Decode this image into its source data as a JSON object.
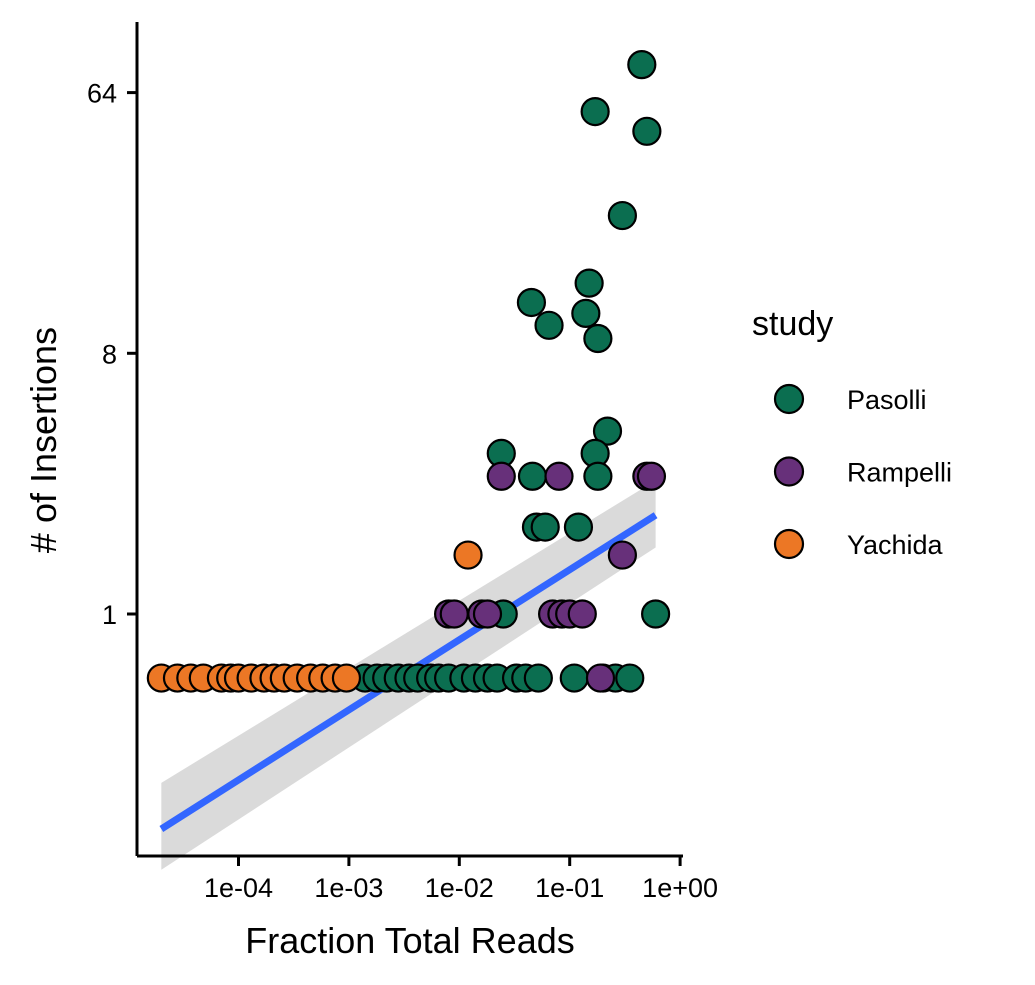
{
  "chart_data": {
    "type": "scatter",
    "xlabel": "Fraction Total Reads",
    "ylabel": "# of Insertions",
    "x_scale": "log10",
    "y_scale": "log2",
    "xlim": [
      7e-06,
      1.0
    ],
    "ylim": [
      0.1,
      120
    ],
    "x_ticks": [
      {
        "value": 0.0001,
        "label": "1e-04"
      },
      {
        "value": 0.001,
        "label": "1e-03"
      },
      {
        "value": 0.01,
        "label": "1e-02"
      },
      {
        "value": 0.1,
        "label": "1e-01"
      },
      {
        "value": 1.0,
        "label": "1e+00"
      }
    ],
    "y_ticks": [
      {
        "value": 1,
        "label": "1"
      },
      {
        "value": 8,
        "label": "8"
      },
      {
        "value": 64,
        "label": "64"
      }
    ],
    "legend": {
      "title": "study",
      "placement": "right",
      "entries": [
        {
          "name": "Pasolli",
          "color": "#0B6E50"
        },
        {
          "name": "Rampelli",
          "color": "#67307A"
        },
        {
          "name": "Yachida",
          "color": "#EC7725"
        }
      ]
    },
    "series": [
      {
        "name": "Pasolli",
        "color": "#0B6E50",
        "points": [
          {
            "x": 0.45,
            "y": 80
          },
          {
            "x": 0.17,
            "y": 55
          },
          {
            "x": 0.5,
            "y": 47
          },
          {
            "x": 0.3,
            "y": 24
          },
          {
            "x": 0.15,
            "y": 14
          },
          {
            "x": 0.045,
            "y": 12
          },
          {
            "x": 0.14,
            "y": 11
          },
          {
            "x": 0.065,
            "y": 10
          },
          {
            "x": 0.18,
            "y": 9
          },
          {
            "x": 0.22,
            "y": 4.3
          },
          {
            "x": 0.024,
            "y": 3.6
          },
          {
            "x": 0.17,
            "y": 3.6
          },
          {
            "x": 0.046,
            "y": 3
          },
          {
            "x": 0.18,
            "y": 3
          },
          {
            "x": 0.05,
            "y": 2
          },
          {
            "x": 0.06,
            "y": 2
          },
          {
            "x": 0.12,
            "y": 2
          },
          {
            "x": 0.6,
            "y": 1
          },
          {
            "x": 0.025,
            "y": 1
          },
          {
            "x": 0.0014,
            "y": 0.6
          },
          {
            "x": 0.0018,
            "y": 0.6
          },
          {
            "x": 0.0022,
            "y": 0.6
          },
          {
            "x": 0.0028,
            "y": 0.6
          },
          {
            "x": 0.0035,
            "y": 0.6
          },
          {
            "x": 0.0042,
            "y": 0.6
          },
          {
            "x": 0.0055,
            "y": 0.6
          },
          {
            "x": 0.0065,
            "y": 0.6
          },
          {
            "x": 0.008,
            "y": 0.6
          },
          {
            "x": 0.011,
            "y": 0.6
          },
          {
            "x": 0.014,
            "y": 0.6
          },
          {
            "x": 0.018,
            "y": 0.6
          },
          {
            "x": 0.022,
            "y": 0.6
          },
          {
            "x": 0.033,
            "y": 0.6
          },
          {
            "x": 0.04,
            "y": 0.6
          },
          {
            "x": 0.052,
            "y": 0.6
          },
          {
            "x": 0.11,
            "y": 0.6
          },
          {
            "x": 0.2,
            "y": 0.6
          },
          {
            "x": 0.26,
            "y": 0.6
          },
          {
            "x": 0.35,
            "y": 0.6
          }
        ]
      },
      {
        "name": "Rampelli",
        "color": "#67307A",
        "points": [
          {
            "x": 0.024,
            "y": 3
          },
          {
            "x": 0.08,
            "y": 3
          },
          {
            "x": 0.5,
            "y": 3
          },
          {
            "x": 0.55,
            "y": 3
          },
          {
            "x": 0.3,
            "y": 1.6
          },
          {
            "x": 0.008,
            "y": 1
          },
          {
            "x": 0.009,
            "y": 1
          },
          {
            "x": 0.016,
            "y": 1
          },
          {
            "x": 0.018,
            "y": 1
          },
          {
            "x": 0.07,
            "y": 1
          },
          {
            "x": 0.085,
            "y": 1
          },
          {
            "x": 0.1,
            "y": 1
          },
          {
            "x": 0.13,
            "y": 1
          },
          {
            "x": 0.19,
            "y": 0.6
          }
        ]
      },
      {
        "name": "Yachida",
        "color": "#EC7725",
        "points": [
          {
            "x": 0.012,
            "y": 1.6
          },
          {
            "x": 2e-05,
            "y": 0.6
          },
          {
            "x": 2.8e-05,
            "y": 0.6
          },
          {
            "x": 3.7e-05,
            "y": 0.6
          },
          {
            "x": 4.8e-05,
            "y": 0.6
          },
          {
            "x": 7e-05,
            "y": 0.6
          },
          {
            "x": 8.5e-05,
            "y": 0.6
          },
          {
            "x": 0.0001,
            "y": 0.6
          },
          {
            "x": 0.00013,
            "y": 0.6
          },
          {
            "x": 0.00017,
            "y": 0.6
          },
          {
            "x": 0.00021,
            "y": 0.6
          },
          {
            "x": 0.00026,
            "y": 0.6
          },
          {
            "x": 0.00034,
            "y": 0.6
          },
          {
            "x": 0.00045,
            "y": 0.6
          },
          {
            "x": 0.00058,
            "y": 0.6
          },
          {
            "x": 0.00075,
            "y": 0.6
          },
          {
            "x": 0.00095,
            "y": 0.6
          }
        ]
      }
    ],
    "trend": {
      "method": "linear fit (log-log)",
      "color": "#3366FF",
      "ci_color": "#D3D3D3",
      "x": [
        2e-05,
        0.6
      ],
      "y": [
        0.18,
        2.2
      ],
      "ci_lower": [
        0.13,
        1.7
      ],
      "ci_upper": [
        0.26,
        2.9
      ]
    }
  }
}
